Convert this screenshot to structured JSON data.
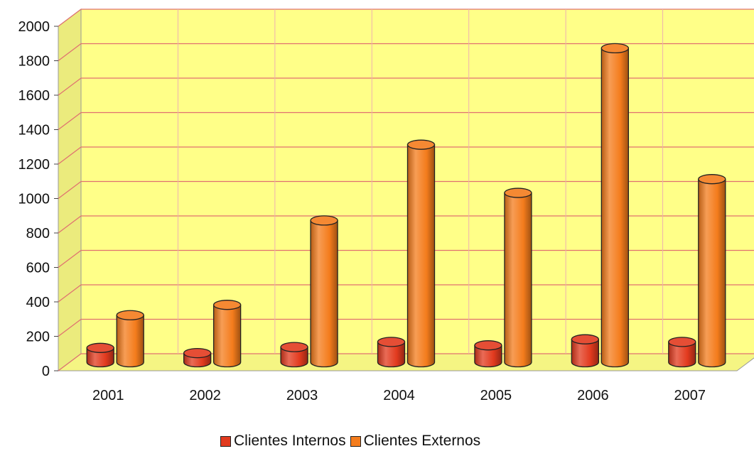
{
  "chart_data": {
    "type": "bar",
    "style": "3d-cylinder",
    "categories": [
      "2001",
      "2002",
      "2003",
      "2004",
      "2005",
      "2006",
      "2007"
    ],
    "series": [
      {
        "name": "Clientes Internos",
        "color": "#e23a1e",
        "values": [
          110,
          80,
          115,
          145,
          125,
          160,
          145
        ]
      },
      {
        "name": "Clientes Externos",
        "color": "#f47c1c",
        "values": [
          300,
          360,
          850,
          1290,
          1010,
          1850,
          1090
        ]
      }
    ],
    "ylim": [
      0,
      2000
    ],
    "yticks": [
      "0",
      "200",
      "400",
      "600",
      "800",
      "1000",
      "1200",
      "1400",
      "1600",
      "1800",
      "2000"
    ],
    "grid": true,
    "background_color": "#ffff88",
    "gridline_color": "#e07070",
    "legend_position": "bottom"
  }
}
